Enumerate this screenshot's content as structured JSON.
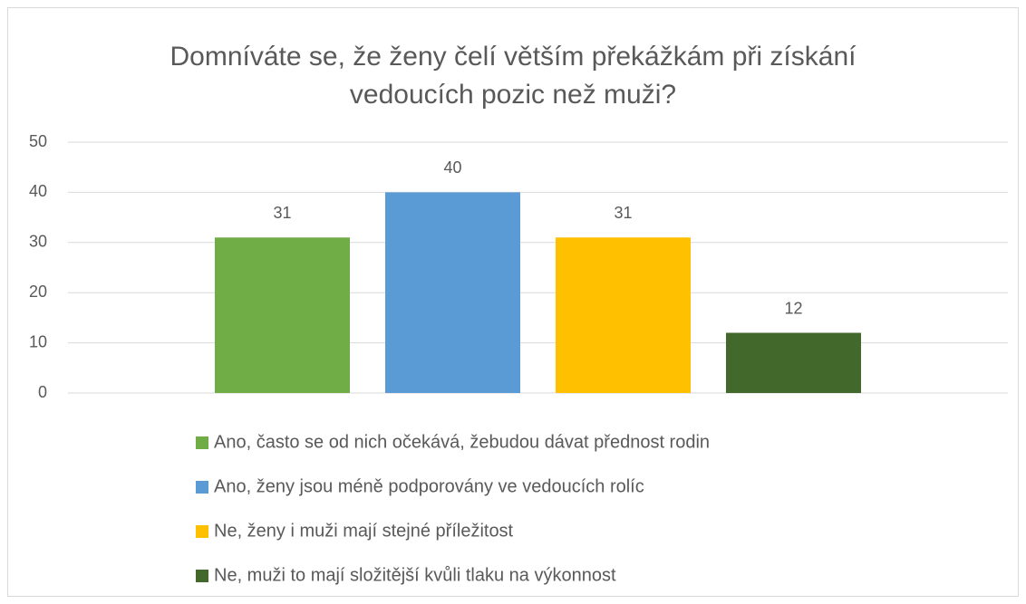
{
  "chart_data": {
    "type": "bar",
    "title": "Domníváte se, že ženy čelí větším překážkám při získání vedoucích pozic než muži?",
    "categories": [
      null
    ],
    "series": [
      {
        "name": "Ano, často se od nich očekává, žebudou dávat přednost rodin",
        "color": "#70ad47",
        "values": [
          31
        ]
      },
      {
        "name": "Ano, ženy jsou méně podporovány ve vedoucích rolíc",
        "color": "#5b9bd5",
        "values": [
          40
        ]
      },
      {
        "name": "Ne, ženy i muži mají stejné příležitost",
        "color": "#ffc000",
        "values": [
          31
        ]
      },
      {
        "name": "Ne, muži to mají složitější kvůli tlaku na výkonnost",
        "color": "#43682b",
        "values": [
          12
        ]
      }
    ],
    "ylim": [
      0,
      50
    ],
    "yticks": [
      0,
      10,
      20,
      30,
      40,
      50
    ],
    "grid": true,
    "legend": "bottom"
  }
}
